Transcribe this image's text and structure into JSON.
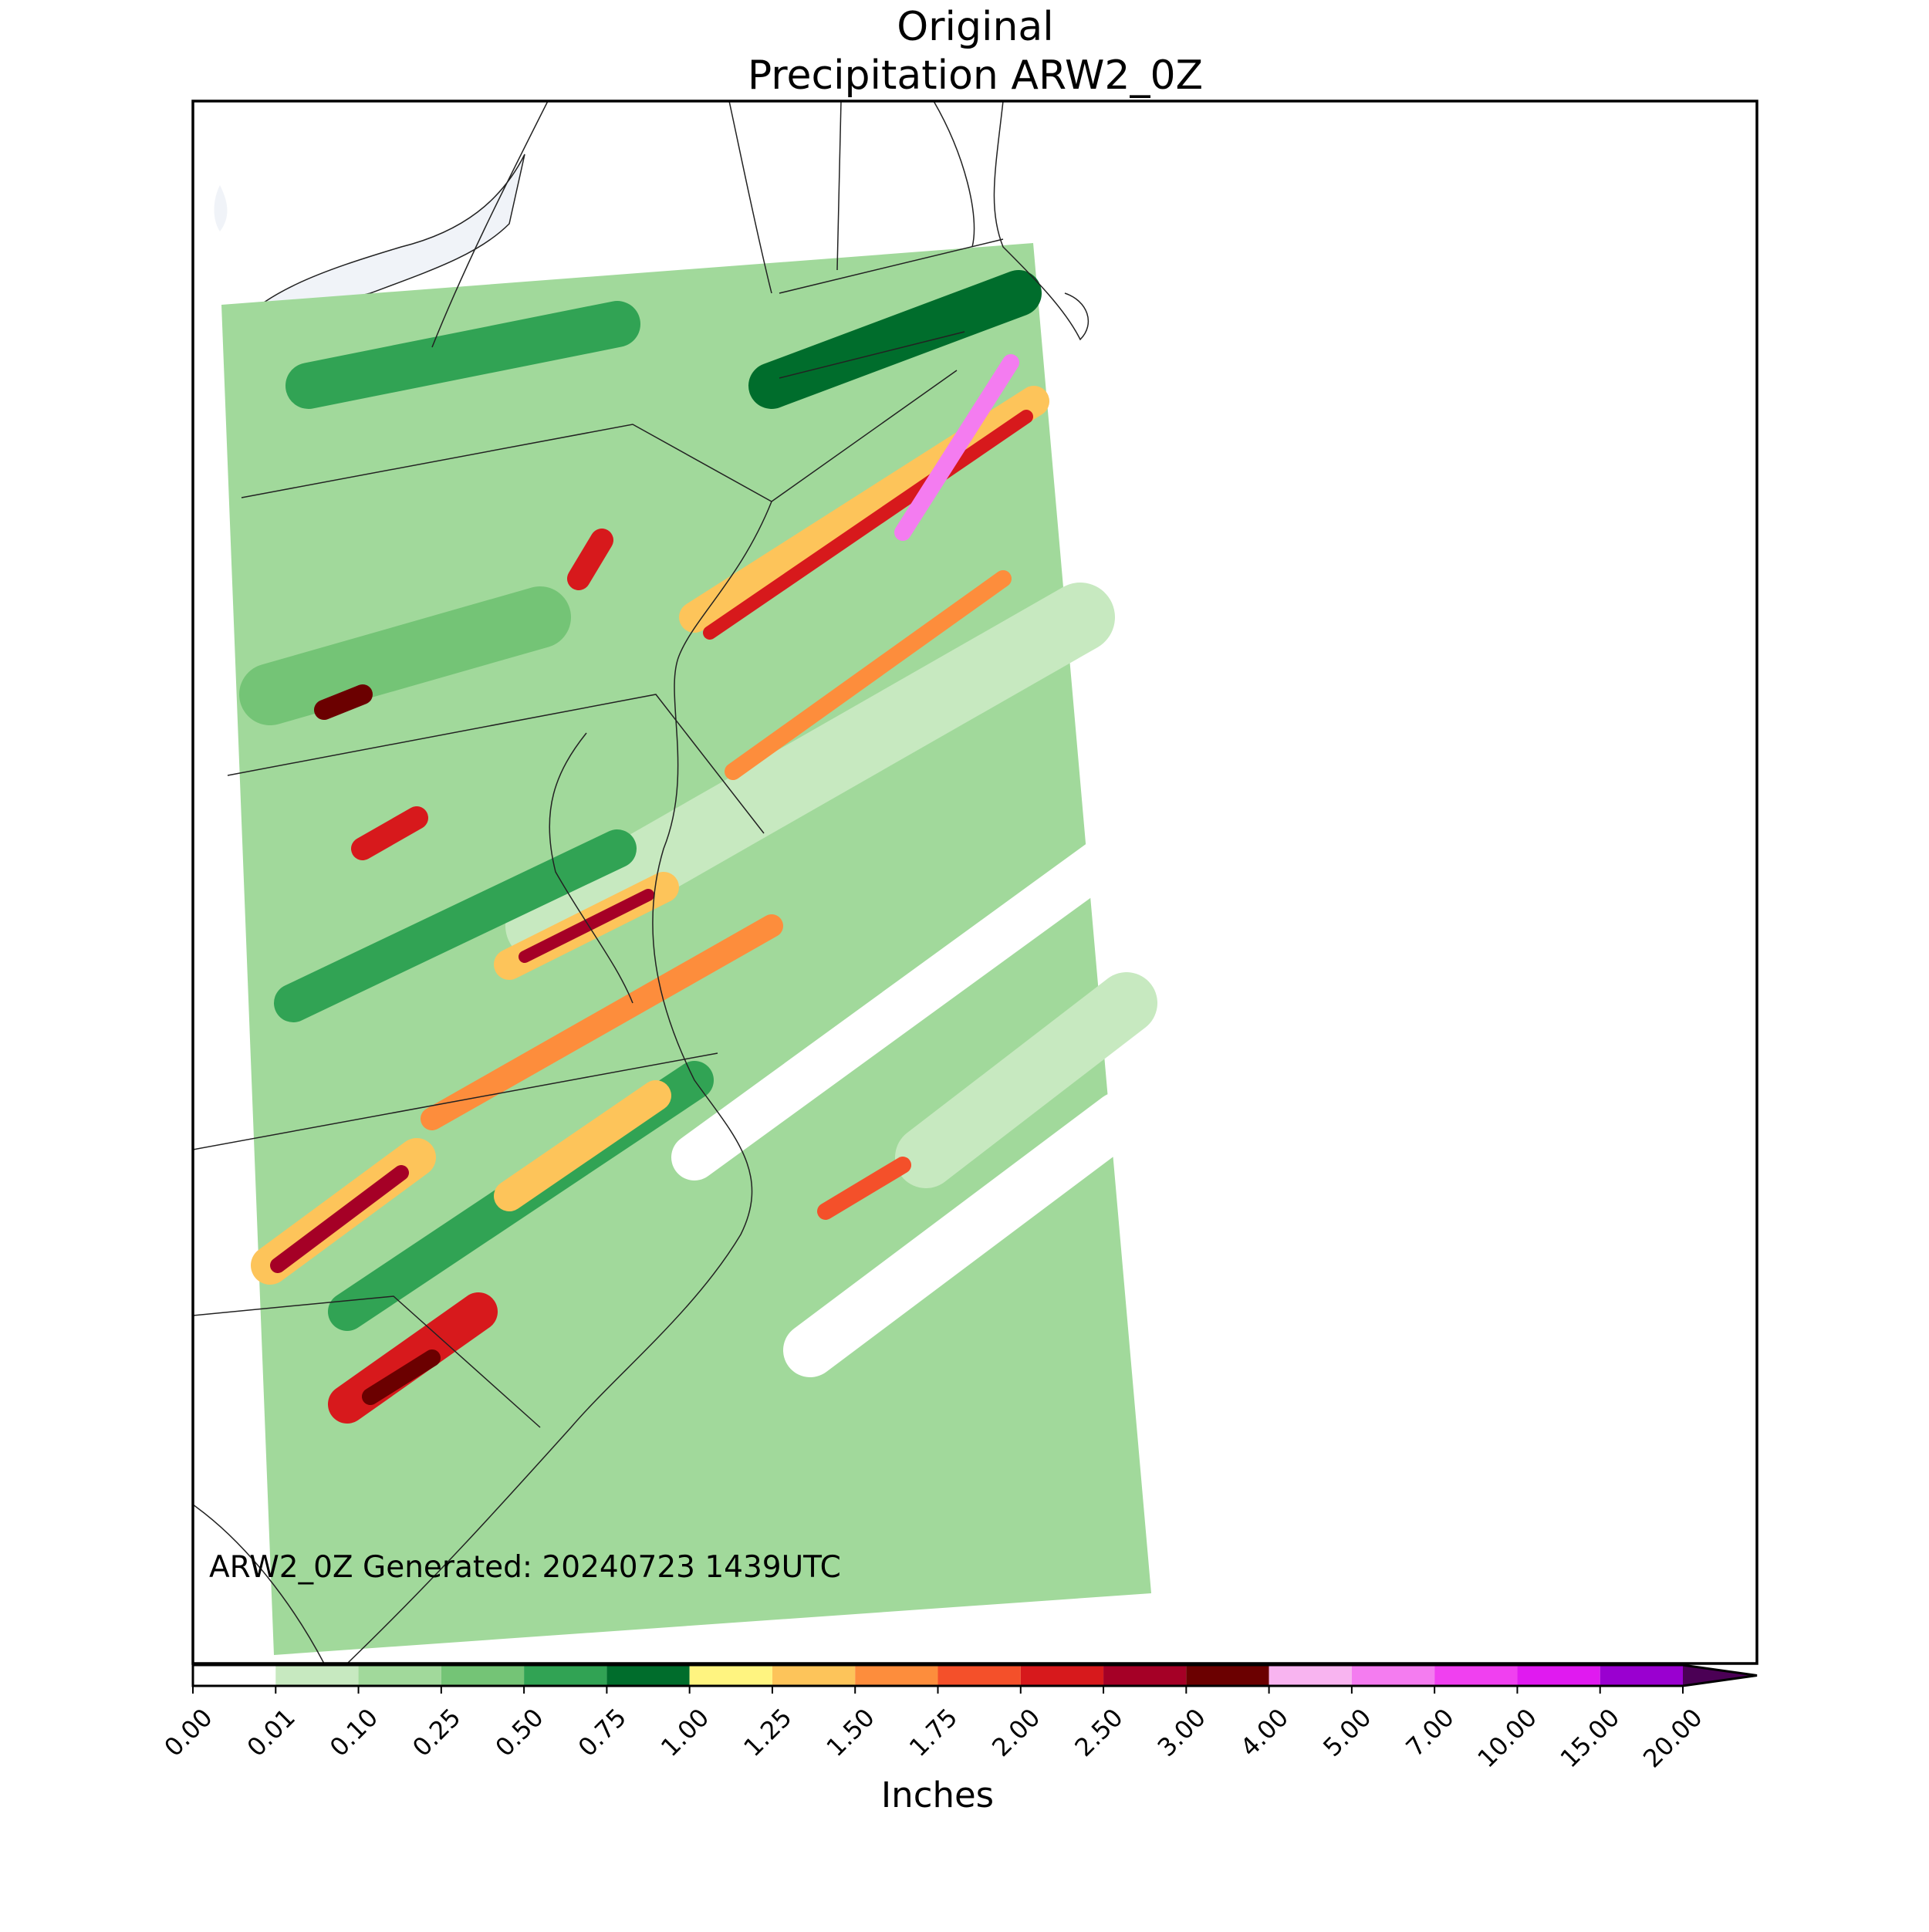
{
  "title": [
    "Original",
    "Precipitation ARW2_0Z"
  ],
  "annotation": "ARW2_0Z Generated: 20240723 1439UTC",
  "colorbar": {
    "label": "Inches",
    "ticks": [
      {
        "value": 0,
        "label": "0.00"
      },
      {
        "value": 0.01,
        "label": "0.01"
      },
      {
        "value": 0.1,
        "label": "0.10"
      },
      {
        "value": 0.25,
        "label": "0.25"
      },
      {
        "value": 0.5,
        "label": "0.50"
      },
      {
        "value": 0.75,
        "label": "0.75"
      },
      {
        "value": 1,
        "label": "1.00"
      },
      {
        "value": 1.25,
        "label": "1.25"
      },
      {
        "value": 1.5,
        "label": "1.50"
      },
      {
        "value": 1.75,
        "label": "1.75"
      },
      {
        "value": 2,
        "label": "2.00"
      },
      {
        "value": 2.5,
        "label": "2.50"
      },
      {
        "value": 3,
        "label": "3.00"
      },
      {
        "value": 4,
        "label": "4.00"
      },
      {
        "value": 5,
        "label": "5.00"
      },
      {
        "value": 7,
        "label": "7.00"
      },
      {
        "value": 10,
        "label": "10.00"
      },
      {
        "value": 15,
        "label": "15.00"
      },
      {
        "value": 20,
        "label": "20.00"
      }
    ],
    "colors": [
      "#ffffff",
      "#c7e9c0",
      "#a1d99b",
      "#74c476",
      "#31a354",
      "#006d2c",
      "#fff480",
      "#fdc45a",
      "#fd8d3c",
      "#f4502a",
      "#d7191c",
      "#a50026",
      "#6b0000",
      "#f8b4f0",
      "#f47cf0",
      "#f040f0",
      "#e01af0",
      "#9a00d0"
    ],
    "extend_color": "#4b0055"
  }
}
